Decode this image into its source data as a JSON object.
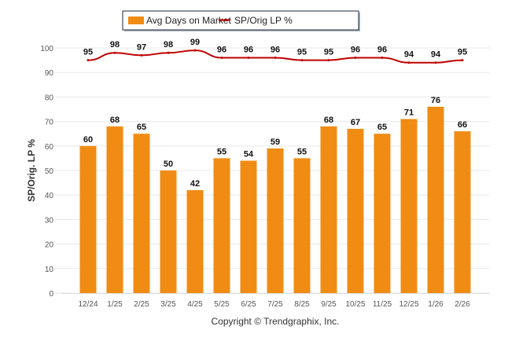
{
  "chart_data": {
    "type": "bar+line",
    "categories": [
      "12/24",
      "1/25",
      "2/25",
      "3/25",
      "4/25",
      "5/25",
      "6/25",
      "7/25",
      "8/25",
      "9/25",
      "10/25",
      "11/25",
      "12/25",
      "1/26",
      "2/26"
    ],
    "series": [
      {
        "name": "Avg Days on Market",
        "type": "bar",
        "color": "#f08c14",
        "values": [
          60,
          68,
          65,
          50,
          42,
          55,
          54,
          59,
          55,
          68,
          67,
          65,
          71,
          76,
          66
        ]
      },
      {
        "name": "SP/Orig LP %",
        "type": "line",
        "color": "#c00000",
        "values": [
          95,
          98,
          97,
          98,
          99,
          96,
          96,
          96,
          95,
          95,
          96,
          96,
          94,
          94,
          95
        ]
      }
    ],
    "ylabel": "SP/Orig. LP %",
    "xlabel": "",
    "ylim": [
      0,
      100
    ],
    "yticks": [
      0,
      10,
      20,
      30,
      40,
      50,
      60,
      70,
      80,
      90,
      100
    ],
    "grid": true,
    "legend": "top-center",
    "footer": "Copyright © Trendgraphix, Inc."
  }
}
